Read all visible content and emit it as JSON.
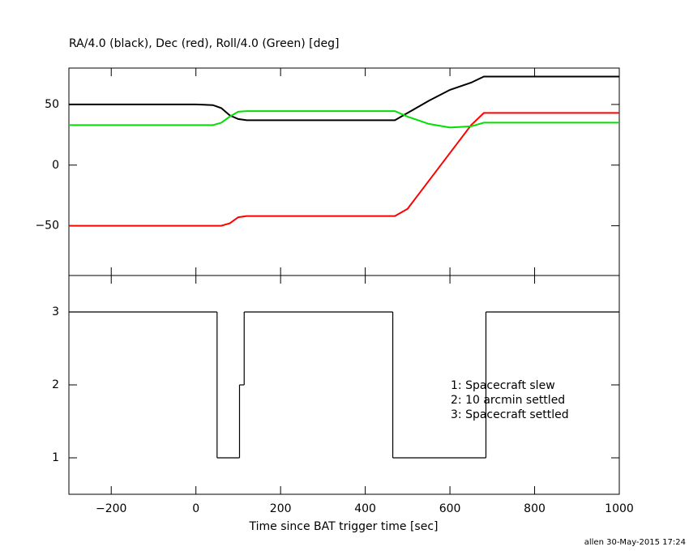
{
  "chart_data": [
    {
      "type": "line",
      "title": "RA/4.0 (black), Dec (red), Roll/4.0 (Green) [deg]",
      "x": [
        -300,
        0,
        40,
        60,
        80,
        100,
        120,
        350,
        470,
        500,
        550,
        600,
        650,
        680,
        700,
        1000
      ],
      "series": [
        {
          "color": "#000000",
          "values": [
            50,
            50,
            49.5,
            47,
            41,
            38,
            37,
            37,
            37,
            43,
            53,
            62,
            68,
            73,
            73,
            73
          ]
        },
        {
          "color": "#ff0000",
          "values": [
            -50,
            -50,
            -50,
            -50,
            -48,
            -43,
            -42,
            -42,
            -42,
            -36,
            -13,
            10,
            33,
            43,
            43,
            43
          ]
        },
        {
          "color": "#00e000",
          "values": [
            33,
            33,
            33,
            35,
            40,
            44,
            44.5,
            44.5,
            44.5,
            40,
            34,
            31,
            32,
            35,
            35,
            35
          ]
        }
      ],
      "xlim": [
        -300,
        1000
      ],
      "xticks": [
        {
          "value": -200,
          "label": "−200"
        },
        0,
        200,
        400,
        600,
        800,
        1000
      ],
      "ylim": [
        -91,
        80
      ],
      "yticks": [
        {
          "value": -50,
          "label": "−50"
        },
        0,
        50
      ]
    },
    {
      "type": "line",
      "step": "post",
      "x": [
        -300,
        50,
        103,
        114,
        465,
        685,
        1000
      ],
      "series": [
        {
          "color": "#000000",
          "values": [
            3,
            1,
            2,
            3,
            1,
            3,
            3
          ]
        }
      ],
      "xlim": [
        -300,
        1000
      ],
      "xticks": [
        {
          "value": -200,
          "label": "−200"
        },
        0,
        200,
        400,
        600,
        800,
        1000
      ],
      "xlabel": "Time since BAT trigger time [sec]",
      "ylim": [
        0.5,
        3.5
      ],
      "yticks": [
        1,
        2,
        3
      ],
      "annotations": [
        "1: Spacecraft slew",
        "2: 10 arcmin settled",
        "3: Spacecraft settled"
      ]
    }
  ],
  "footer": "allen 30-May-2015 17:24"
}
